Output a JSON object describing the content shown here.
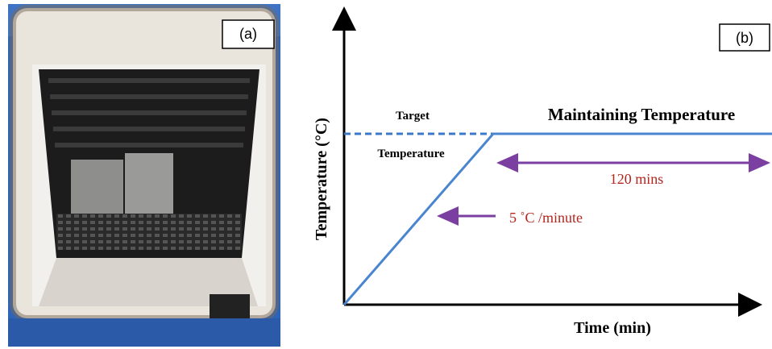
{
  "panel_a": {
    "label": "(a)"
  },
  "panel_b": {
    "label": "(b)",
    "y_axis_label": "Temperature (°C)",
    "x_axis_label": "Time (min)",
    "target_label_line1": "Target",
    "target_label_line2": "Temperature",
    "plateau_label": "Maintaining Temperature",
    "duration_label": "120 mins",
    "rate_label": "5 ˚C /minute"
  }
}
